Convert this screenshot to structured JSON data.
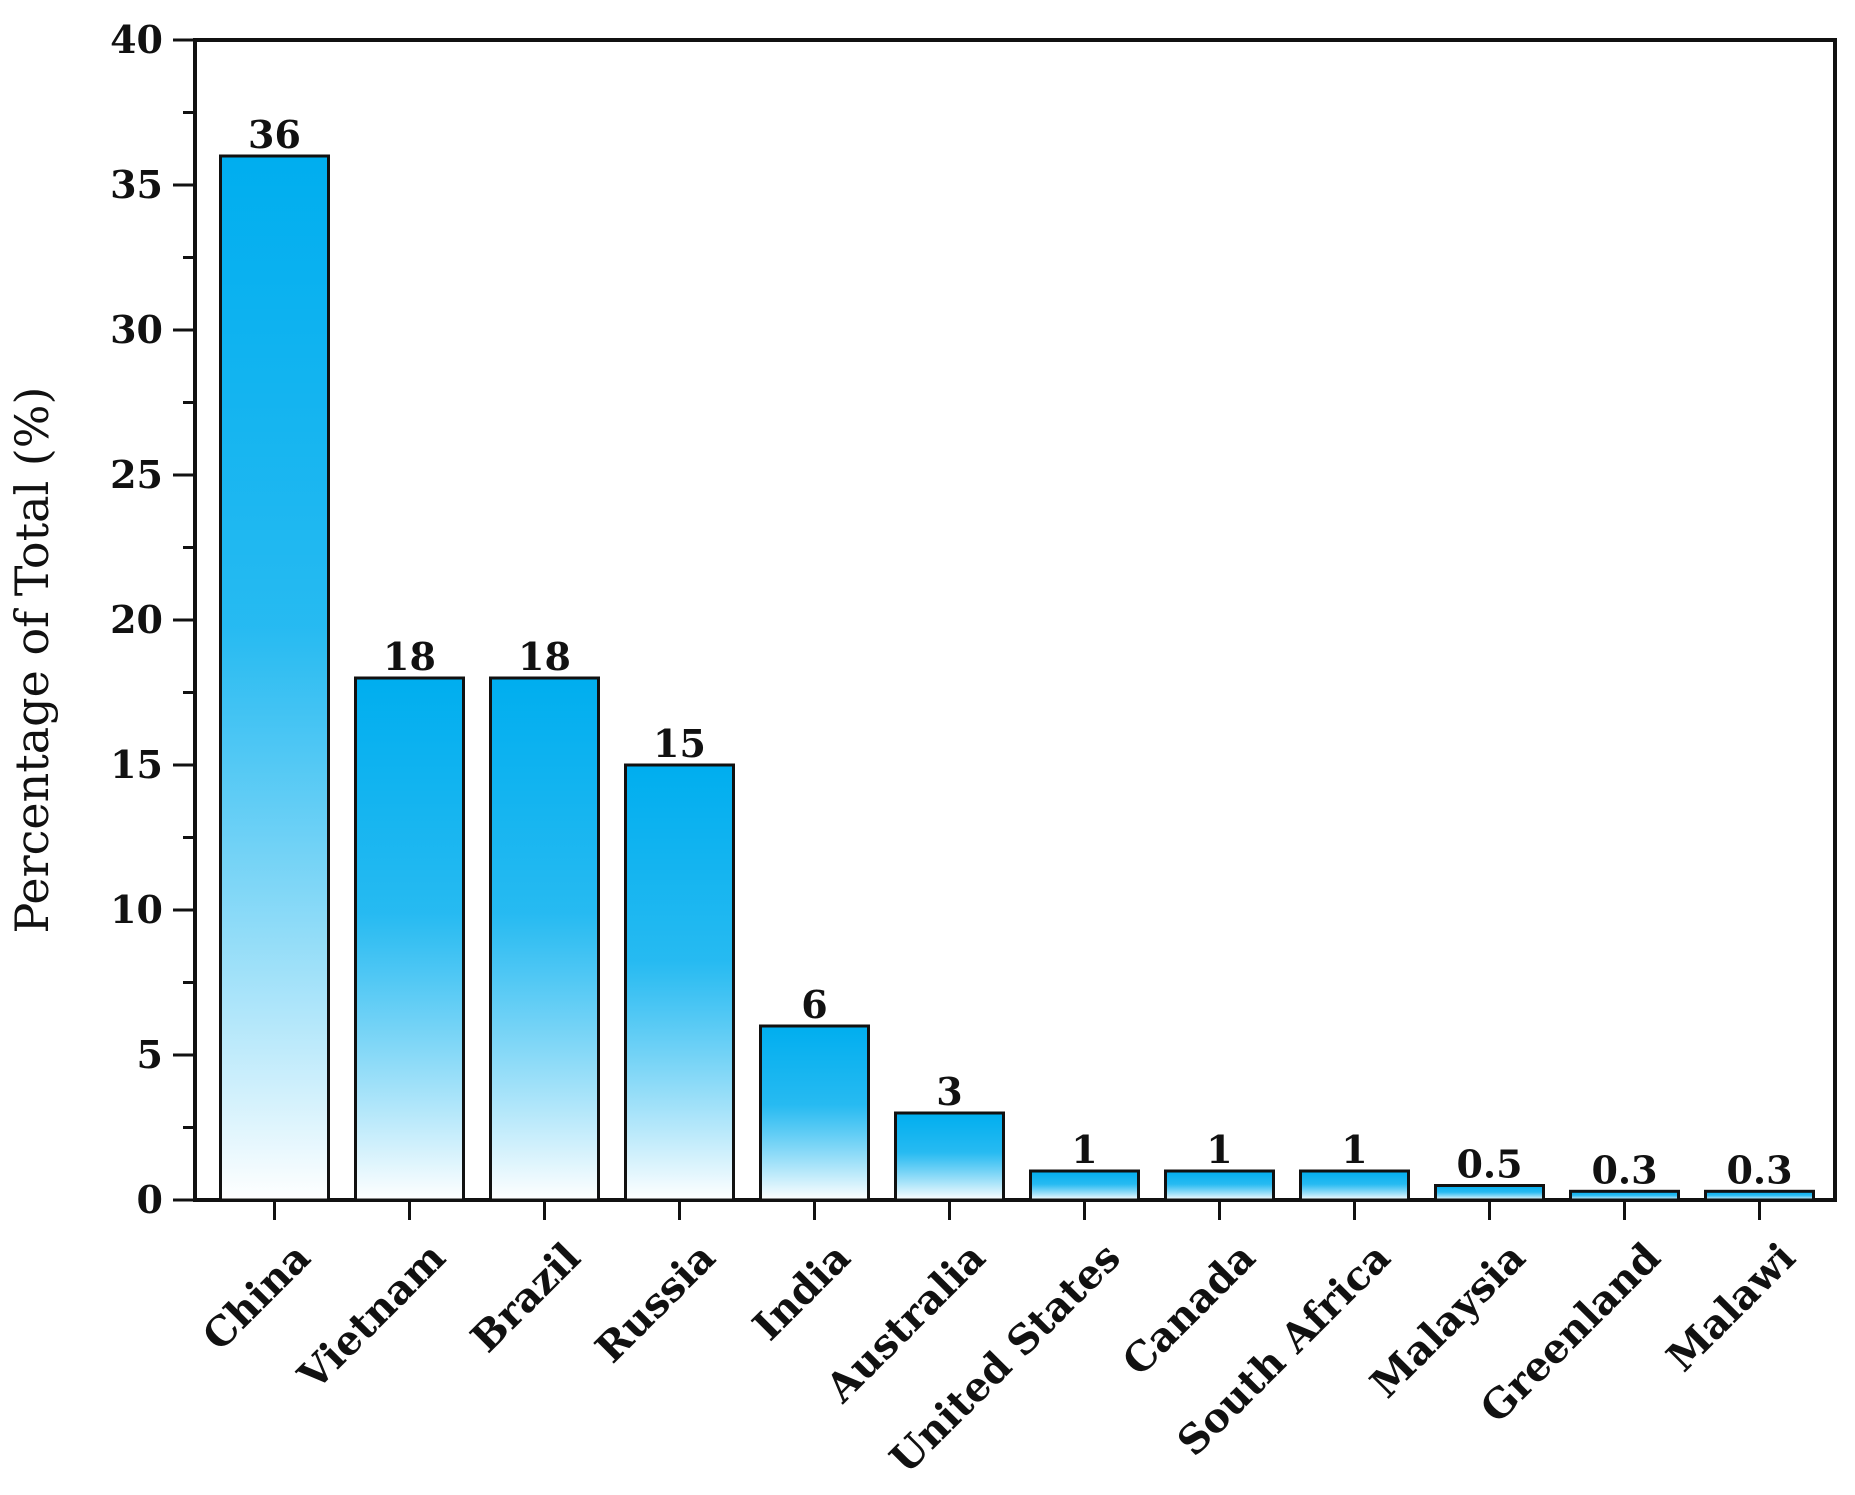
{
  "chart_data": {
    "type": "bar",
    "categories": [
      "China",
      "Vietnam",
      "Brazil",
      "Russia",
      "India",
      "Australia",
      "United States",
      "Canada",
      "South Africa",
      "Malaysia",
      "Greenland",
      "Malawi"
    ],
    "values": [
      36,
      18,
      18,
      15,
      6,
      3,
      1,
      1,
      1,
      0.5,
      0.3,
      0.3
    ],
    "data_labels": [
      "36",
      "18",
      "18",
      "15",
      "6",
      "3",
      "1",
      "1",
      "1",
      "0.5",
      "0.3",
      "0.3"
    ],
    "title": "",
    "xlabel": "",
    "ylabel": "Percentage of Total (%)",
    "ylim": [
      0,
      40
    ],
    "yticks": [
      0,
      5,
      10,
      15,
      20,
      25,
      30,
      35,
      40
    ],
    "grid": false,
    "legend": "none",
    "colors": {
      "bar_top": "#00aeef",
      "bar_bottom": "#ffffff",
      "bar_outline": "#111111",
      "axis": "#111111"
    }
  }
}
